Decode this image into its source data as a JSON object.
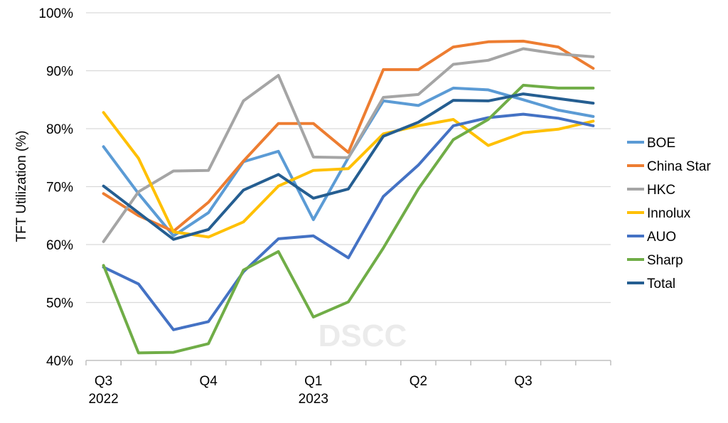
{
  "chart_data": {
    "type": "line",
    "ylabel": "TFT Utilization (%)",
    "ylim": [
      40,
      100
    ],
    "y_ticks": [
      "40%",
      "50%",
      "60%",
      "70%",
      "80%",
      "90%",
      "100%"
    ],
    "y_tick_values": [
      40,
      50,
      60,
      70,
      80,
      90,
      100
    ],
    "x_tick_labels": [
      {
        "line1": "Q3",
        "line2": "2022",
        "index": 0
      },
      {
        "line1": "Q4",
        "line2": "",
        "index": 3
      },
      {
        "line1": "Q1",
        "line2": "2023",
        "index": 6
      },
      {
        "line1": "Q2",
        "line2": "",
        "index": 9
      },
      {
        "line1": "Q3",
        "line2": "",
        "index": 12
      }
    ],
    "num_points": 15,
    "grid": "horizontal",
    "legend_position": "right",
    "watermark": "DSCC",
    "series": [
      {
        "name": "BOE",
        "color": "#5b9bd5",
        "values": [
          76.9,
          68.8,
          61.5,
          65.5,
          74.3,
          76.1,
          64.3,
          75.0,
          84.8,
          84.0,
          87.0,
          86.7,
          85.0,
          83.2,
          82.1
        ]
      },
      {
        "name": "China Star",
        "color": "#ed7d31",
        "values": [
          68.8,
          65.0,
          62.3,
          67.3,
          74.4,
          80.9,
          80.9,
          75.9,
          90.2,
          90.2,
          94.1,
          95.0,
          95.1,
          94.1,
          90.4
        ]
      },
      {
        "name": "HKC",
        "color": "#a5a5a5",
        "values": [
          60.5,
          69.1,
          72.7,
          72.8,
          84.8,
          89.2,
          75.1,
          75.0,
          85.4,
          85.9,
          91.1,
          91.8,
          93.8,
          92.9,
          92.4
        ]
      },
      {
        "name": "Innolux",
        "color": "#ffc000",
        "values": [
          82.8,
          74.9,
          62.2,
          61.3,
          63.9,
          70.1,
          72.8,
          73.1,
          79.1,
          80.5,
          81.6,
          77.1,
          79.3,
          79.9,
          81.3
        ]
      },
      {
        "name": "AUO",
        "color": "#4472c4",
        "values": [
          56.1,
          53.2,
          45.3,
          46.7,
          55.3,
          61.0,
          61.5,
          57.7,
          68.3,
          73.7,
          80.5,
          81.9,
          82.5,
          81.8,
          80.5
        ]
      },
      {
        "name": "Sharp",
        "color": "#70ad47",
        "values": [
          56.4,
          41.3,
          41.4,
          42.9,
          55.6,
          58.8,
          47.5,
          50.1,
          59.4,
          69.6,
          78.1,
          81.6,
          87.5,
          87.0,
          87.0
        ]
      },
      {
        "name": "Total",
        "color": "#255e91",
        "values": [
          70.1,
          65.5,
          60.9,
          62.6,
          69.4,
          72.1,
          68.0,
          69.6,
          78.7,
          81.1,
          84.9,
          84.8,
          86.0,
          85.2,
          84.4
        ]
      }
    ]
  }
}
